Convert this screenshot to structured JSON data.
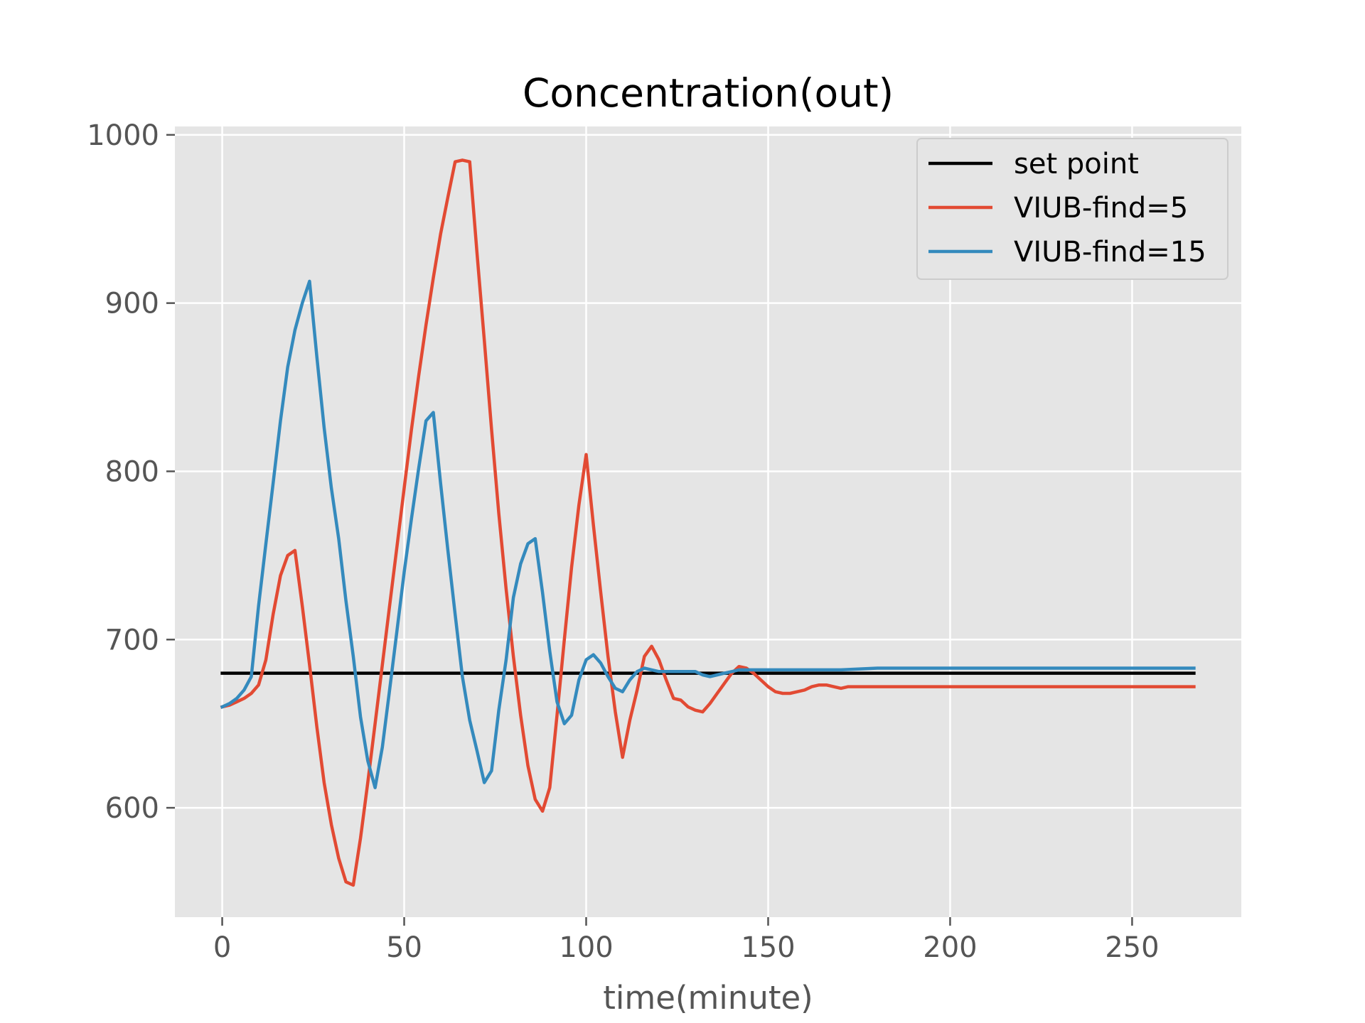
{
  "chart_data": {
    "type": "line",
    "title": "Concentration(out)",
    "xlabel": "time(minute)",
    "ylabel": "",
    "xlim": [
      -13,
      280
    ],
    "ylim": [
      535,
      1005
    ],
    "xticks": [
      0,
      50,
      100,
      150,
      200,
      250
    ],
    "yticks": [
      600,
      700,
      800,
      900,
      1000
    ],
    "grid": true,
    "legend_position": "top-right",
    "background": "#e5e5e5",
    "series": [
      {
        "name": "set point",
        "color": "#000000",
        "x": [
          0,
          267
        ],
        "y": [
          680,
          680
        ]
      },
      {
        "name": "VIUB-find=5",
        "color": "#e24a33",
        "x": [
          0,
          2,
          4,
          6,
          8,
          10,
          12,
          14,
          16,
          18,
          20,
          22,
          24,
          26,
          28,
          30,
          32,
          34,
          36,
          38,
          40,
          42,
          44,
          46,
          48,
          50,
          52,
          54,
          56,
          58,
          60,
          62,
          64,
          66,
          68,
          70,
          72,
          74,
          76,
          78,
          80,
          82,
          84,
          86,
          88,
          90,
          92,
          94,
          96,
          98,
          100,
          102,
          104,
          106,
          108,
          110,
          112,
          114,
          116,
          118,
          120,
          122,
          124,
          126,
          128,
          130,
          132,
          134,
          136,
          138,
          140,
          142,
          144,
          146,
          148,
          150,
          152,
          154,
          156,
          158,
          160,
          162,
          164,
          166,
          168,
          170,
          172,
          175,
          180,
          185,
          190,
          195,
          200,
          210,
          220,
          230,
          240,
          250,
          260,
          267
        ],
        "y": [
          660,
          661,
          663,
          665,
          668,
          673,
          688,
          715,
          738,
          750,
          753,
          720,
          685,
          648,
          615,
          590,
          570,
          556,
          554,
          582,
          615,
          650,
          685,
          720,
          755,
          790,
          825,
          857,
          887,
          915,
          941,
          963,
          984,
          985,
          984,
          930,
          878,
          825,
          775,
          730,
          690,
          655,
          625,
          605,
          598,
          612,
          655,
          700,
          743,
          780,
          810,
          768,
          728,
          690,
          657,
          630,
          652,
          670,
          690,
          696,
          688,
          676,
          665,
          664,
          660,
          658,
          657,
          662,
          668,
          674,
          680,
          684,
          683,
          680,
          676,
          672,
          669,
          668,
          668,
          669,
          670,
          672,
          673,
          673,
          672,
          671,
          672,
          672,
          672,
          672,
          672,
          672,
          672,
          672,
          672,
          672,
          672,
          672,
          672,
          672
        ]
      },
      {
        "name": "VIUB-find=15",
        "color": "#348abd",
        "x": [
          0,
          2,
          4,
          6,
          8,
          10,
          12,
          14,
          16,
          18,
          20,
          22,
          24,
          26,
          28,
          30,
          32,
          34,
          36,
          38,
          40,
          42,
          44,
          46,
          48,
          50,
          52,
          54,
          56,
          58,
          60,
          62,
          64,
          66,
          68,
          70,
          72,
          74,
          76,
          78,
          80,
          82,
          84,
          86,
          88,
          90,
          92,
          94,
          96,
          98,
          100,
          102,
          104,
          106,
          108,
          110,
          112,
          114,
          116,
          118,
          120,
          122,
          124,
          126,
          128,
          130,
          132,
          134,
          136,
          138,
          140,
          142,
          144,
          146,
          148,
          150,
          155,
          160,
          165,
          170,
          180,
          190,
          200,
          210,
          220,
          230,
          240,
          250,
          260,
          267
        ],
        "y": [
          660,
          662,
          665,
          670,
          678,
          720,
          757,
          793,
          830,
          862,
          884,
          900,
          913,
          868,
          826,
          790,
          760,
          723,
          690,
          654,
          628,
          612,
          636,
          670,
          705,
          740,
          772,
          802,
          830,
          835,
          793,
          753,
          715,
          678,
          652,
          634,
          615,
          622,
          658,
          688,
          725,
          745,
          757,
          760,
          728,
          693,
          663,
          650,
          655,
          676,
          688,
          691,
          686,
          678,
          671,
          669,
          676,
          681,
          683,
          682,
          681,
          681,
          681,
          681,
          681,
          681,
          679,
          678,
          679,
          680,
          681,
          682,
          682,
          682,
          682,
          682,
          682,
          682,
          682,
          682,
          683,
          683,
          683,
          683,
          683,
          683,
          683,
          683,
          683,
          683
        ]
      }
    ]
  }
}
